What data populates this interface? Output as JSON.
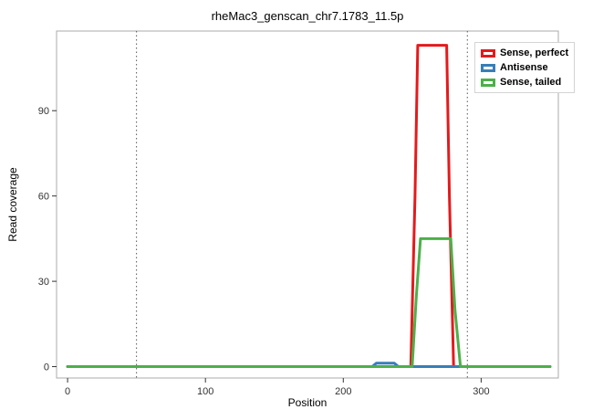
{
  "title": "rheMac3_genscan_chr7.1783_11.5p",
  "chart_data": {
    "type": "line",
    "title": "rheMac3_genscan_chr7.1783_11.5p",
    "xlabel": "Position",
    "ylabel": "Read coverage",
    "xlim": [
      -8,
      356
    ],
    "ylim": [
      -4,
      118
    ],
    "xticks": [
      0,
      100,
      200,
      300
    ],
    "yticks": [
      0,
      30,
      60,
      90
    ],
    "grid": false,
    "legend_position": "top-right",
    "vlines": [
      {
        "x": 50,
        "style": "dotted",
        "color": "#555555"
      },
      {
        "x": 290,
        "style": "dotted",
        "color": "#555555"
      }
    ],
    "series": [
      {
        "name": "Sense, perfect",
        "color": "#e41a1c",
        "points": [
          [
            0,
            0
          ],
          [
            249,
            0
          ],
          [
            252,
            60
          ],
          [
            254,
            113
          ],
          [
            275,
            113
          ],
          [
            277,
            60
          ],
          [
            280,
            0
          ],
          [
            350,
            0
          ]
        ]
      },
      {
        "name": "Antisense",
        "color": "#377eb8",
        "points": [
          [
            0,
            0
          ],
          [
            221,
            0
          ],
          [
            224,
            1.2
          ],
          [
            237,
            1.2
          ],
          [
            240,
            0
          ],
          [
            350,
            0
          ]
        ]
      },
      {
        "name": "Sense, tailed",
        "color": "#4daf4a",
        "points": [
          [
            0,
            0
          ],
          [
            250,
            0
          ],
          [
            253,
            25
          ],
          [
            256,
            45
          ],
          [
            278,
            45
          ],
          [
            281,
            20
          ],
          [
            285,
            0
          ],
          [
            350,
            0
          ]
        ]
      }
    ]
  },
  "legend": {
    "items": [
      {
        "label": "Sense, perfect",
        "color": "#e41a1c"
      },
      {
        "label": "Antisense",
        "color": "#377eb8"
      },
      {
        "label": "Sense, tailed",
        "color": "#4daf4a"
      }
    ]
  },
  "panel": {
    "border_color": "#ababab",
    "background": "#ffffff",
    "tick_color": "#333333"
  }
}
